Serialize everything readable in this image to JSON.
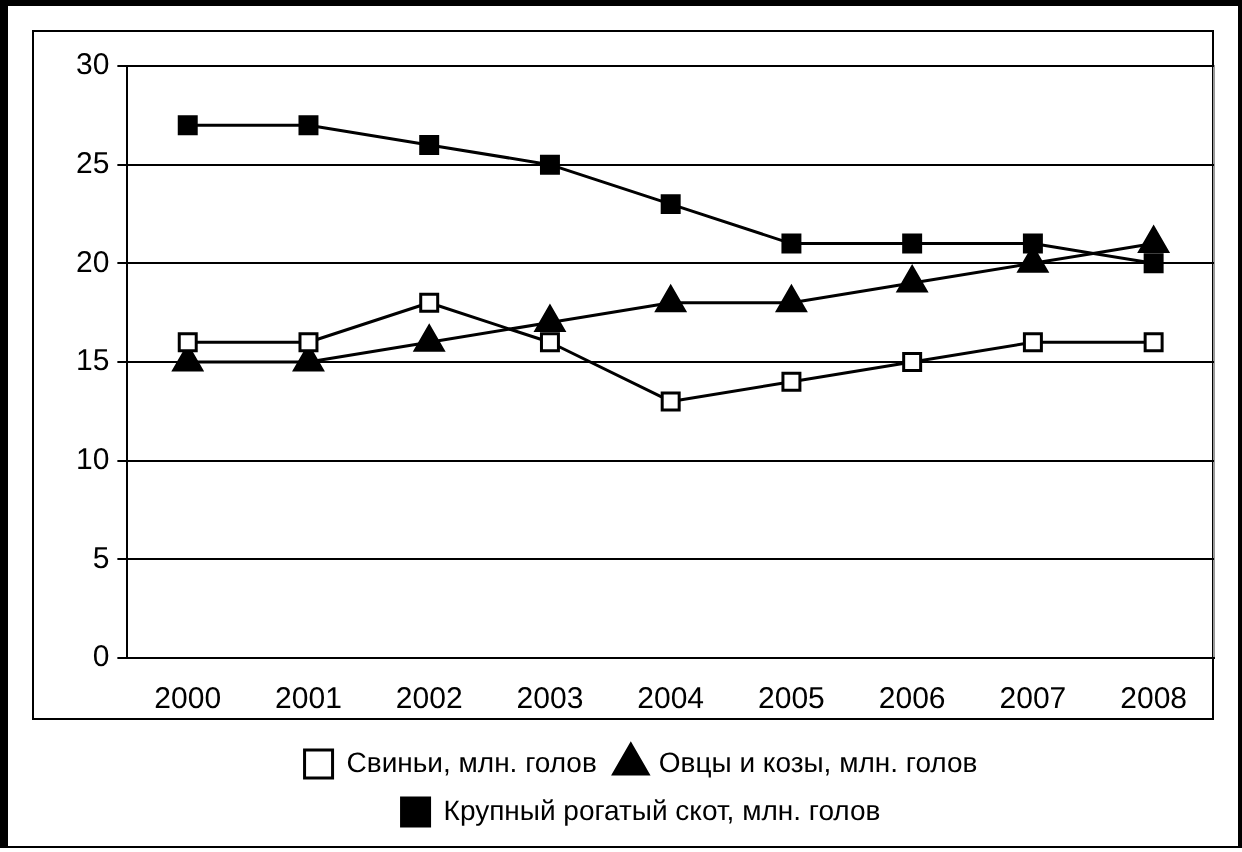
{
  "chart_data": {
    "type": "line",
    "categories": [
      "2000",
      "2001",
      "2002",
      "2003",
      "2004",
      "2005",
      "2006",
      "2007",
      "2008"
    ],
    "series": [
      {
        "name": "Свиньи, млн. голов",
        "color": "#ffffff",
        "marker": "square",
        "values": [
          16,
          16,
          18,
          16,
          13,
          14,
          15,
          16,
          16
        ]
      },
      {
        "name": "Овцы и козы, млн. голов",
        "color": "#000000",
        "marker": "triangle",
        "values": [
          15,
          15,
          16,
          17,
          18,
          18,
          19,
          20,
          21
        ]
      },
      {
        "name": "Крупный рогатый скот, млн. голов",
        "color": "#000000",
        "marker": "square",
        "values": [
          27,
          27,
          26,
          25,
          23,
          21,
          21,
          21,
          20
        ]
      }
    ],
    "ylim": [
      0,
      30
    ],
    "yticks": [
      0,
      5,
      10,
      15,
      20,
      25,
      30
    ],
    "grid": "y",
    "legend": "bottom"
  }
}
